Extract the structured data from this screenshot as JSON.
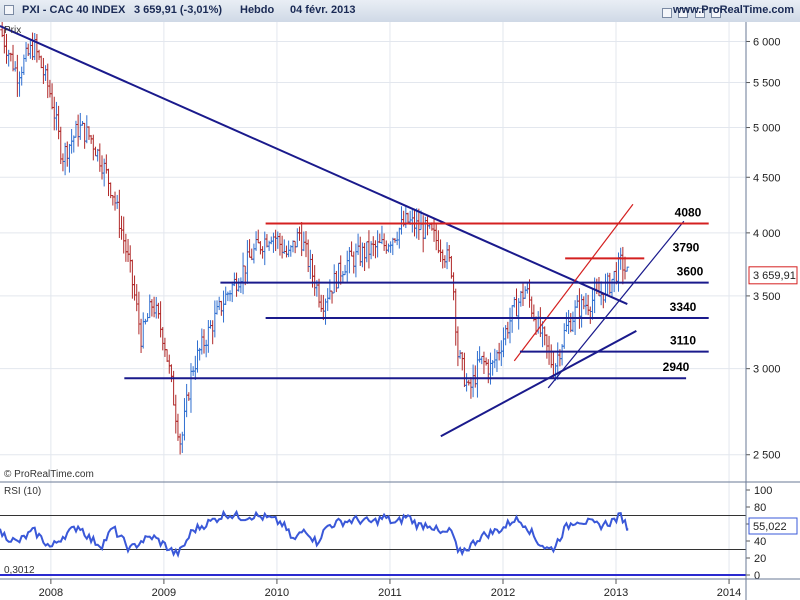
{
  "header": {
    "symbol": "PXI - CAC 40 INDEX",
    "quote": "3 659,91 (-3,01%)",
    "period": "Hebdo",
    "date": "04 févr. 2013",
    "site": "www.ProRealTime.com"
  },
  "main_panel": {
    "label": "Prix",
    "copyright": "© ProRealTime.com",
    "current_price_label": "3 659,91",
    "levels": [
      {
        "label": "4080",
        "value": 4080
      },
      {
        "label": "3790",
        "value": 3790
      },
      {
        "label": "3600",
        "value": 3600
      },
      {
        "label": "3340",
        "value": 3340
      },
      {
        "label": "3110",
        "value": 3110
      },
      {
        "label": "2940",
        "value": 2940
      }
    ]
  },
  "rsi_panel": {
    "label": "RSI (10)",
    "current_label": "55,022",
    "bottom_left_label": "0,3012"
  },
  "colors": {
    "up": "#2f6fd0",
    "down": "#b02828",
    "trend": "#1a1a8c",
    "resistance": "#d42020",
    "rsi_line": "#3a58d8"
  },
  "chart_data": {
    "type": "ohlc",
    "title": "PXI - CAC 40 INDEX",
    "period": "Hebdo",
    "y_scale": "log",
    "ylim": [
      2400,
      6200
    ],
    "y_ticks": [
      2500,
      3000,
      3500,
      4000,
      4500,
      5000,
      5500,
      6000
    ],
    "y_tick_labels": [
      "2 500",
      "3 000",
      "3 500",
      "4 000",
      "4 500",
      "5 000",
      "5 500",
      "6 000"
    ],
    "x_ticks": [
      "2008",
      "2009",
      "2010",
      "2011",
      "2012",
      "2013",
      "2014"
    ],
    "x_range": [
      2007.55,
      2014.15
    ],
    "last_close": 3659.91,
    "price_path": [
      [
        2007.55,
        6150
      ],
      [
        2007.7,
        5600
      ],
      [
        2007.85,
        5950
      ],
      [
        2008.0,
        5350
      ],
      [
        2008.1,
        4700
      ],
      [
        2008.25,
        5000
      ],
      [
        2008.35,
        4900
      ],
      [
        2008.45,
        4650
      ],
      [
        2008.55,
        4350
      ],
      [
        2008.7,
        3700
      ],
      [
        2008.8,
        3200
      ],
      [
        2008.9,
        3450
      ],
      [
        2009.0,
        3200
      ],
      [
        2009.1,
        2750
      ],
      [
        2009.15,
        2550
      ],
      [
        2009.25,
        3000
      ],
      [
        2009.4,
        3250
      ],
      [
        2009.55,
        3500
      ],
      [
        2009.7,
        3700
      ],
      [
        2009.8,
        3850
      ],
      [
        2009.95,
        4000
      ],
      [
        2010.0,
        3950
      ],
      [
        2010.1,
        3800
      ],
      [
        2010.2,
        4000
      ],
      [
        2010.3,
        3700
      ],
      [
        2010.4,
        3450
      ],
      [
        2010.5,
        3600
      ],
      [
        2010.6,
        3750
      ],
      [
        2010.8,
        3850
      ],
      [
        2010.95,
        3900
      ],
      [
        2011.05,
        4000
      ],
      [
        2011.15,
        4100
      ],
      [
        2011.25,
        4050
      ],
      [
        2011.35,
        4000
      ],
      [
        2011.45,
        3900
      ],
      [
        2011.55,
        3700
      ],
      [
        2011.6,
        3100
      ],
      [
        2011.7,
        2850
      ],
      [
        2011.8,
        3050
      ],
      [
        2011.9,
        3000
      ],
      [
        2012.0,
        3200
      ],
      [
        2012.1,
        3400
      ],
      [
        2012.2,
        3550
      ],
      [
        2012.3,
        3300
      ],
      [
        2012.4,
        3100
      ],
      [
        2012.45,
        3000
      ],
      [
        2012.55,
        3250
      ],
      [
        2012.65,
        3400
      ],
      [
        2012.75,
        3450
      ],
      [
        2012.85,
        3500
      ],
      [
        2012.95,
        3600
      ],
      [
        2013.05,
        3760
      ],
      [
        2013.1,
        3659.91
      ]
    ],
    "trend_lines": [
      {
        "name": "downtrend",
        "points": [
          [
            2007.55,
            6200
          ],
          [
            2013.1,
            3440
          ]
        ]
      },
      {
        "name": "support",
        "points": [
          [
            2011.45,
            2600
          ],
          [
            2013.18,
            3250
          ]
        ]
      },
      {
        "name": "channel-lower",
        "points": [
          [
            2012.4,
            2880
          ],
          [
            2013.6,
            4100
          ]
        ]
      },
      {
        "name": "channel-upper",
        "points": [
          [
            2012.1,
            3050
          ],
          [
            2013.15,
            4250
          ]
        ]
      }
    ],
    "horizontal_levels": [
      {
        "value": 4080,
        "from": 2009.9,
        "to": 2013.82,
        "color": "resistance"
      },
      {
        "value": 3790,
        "from": 2012.55,
        "to": 2013.25,
        "color": "resistance"
      },
      {
        "value": 3600,
        "from": 2009.5,
        "to": 2013.82,
        "color": "trend"
      },
      {
        "value": 3340,
        "from": 2009.9,
        "to": 2013.82,
        "color": "trend"
      },
      {
        "value": 3110,
        "from": 2012.15,
        "to": 2013.82,
        "color": "trend"
      },
      {
        "value": 2940,
        "from": 2008.65,
        "to": 2013.62,
        "color": "trend"
      }
    ],
    "rsi": {
      "name": "RSI (10)",
      "ylim": [
        0,
        100
      ],
      "y_ticks": [
        0,
        20,
        40,
        60,
        80,
        100
      ],
      "bands": [
        30,
        70
      ],
      "last": 55.022,
      "path": [
        [
          2007.55,
          50
        ],
        [
          2007.7,
          38
        ],
        [
          2007.85,
          52
        ],
        [
          2008.0,
          32
        ],
        [
          2008.1,
          45
        ],
        [
          2008.25,
          58
        ],
        [
          2008.35,
          42
        ],
        [
          2008.45,
          35
        ],
        [
          2008.55,
          55
        ],
        [
          2008.7,
          30
        ],
        [
          2008.8,
          40
        ],
        [
          2008.9,
          45
        ],
        [
          2009.0,
          36
        ],
        [
          2009.1,
          25
        ],
        [
          2009.15,
          28
        ],
        [
          2009.25,
          52
        ],
        [
          2009.4,
          62
        ],
        [
          2009.55,
          72
        ],
        [
          2009.7,
          68
        ],
        [
          2009.8,
          70
        ],
        [
          2009.95,
          66
        ],
        [
          2010.05,
          60
        ],
        [
          2010.15,
          40
        ],
        [
          2010.25,
          55
        ],
        [
          2010.35,
          38
        ],
        [
          2010.45,
          58
        ],
        [
          2010.55,
          62
        ],
        [
          2010.7,
          65
        ],
        [
          2010.85,
          62
        ],
        [
          2010.95,
          68
        ],
        [
          2011.05,
          60
        ],
        [
          2011.15,
          70
        ],
        [
          2011.25,
          58
        ],
        [
          2011.35,
          60
        ],
        [
          2011.45,
          48
        ],
        [
          2011.55,
          52
        ],
        [
          2011.6,
          25
        ],
        [
          2011.7,
          33
        ],
        [
          2011.8,
          45
        ],
        [
          2011.9,
          50
        ],
        [
          2012.0,
          55
        ],
        [
          2012.1,
          66
        ],
        [
          2012.2,
          60
        ],
        [
          2012.3,
          40
        ],
        [
          2012.4,
          30
        ],
        [
          2012.45,
          32
        ],
        [
          2012.55,
          55
        ],
        [
          2012.65,
          65
        ],
        [
          2012.75,
          62
        ],
        [
          2012.85,
          58
        ],
        [
          2012.95,
          62
        ],
        [
          2013.05,
          70
        ],
        [
          2013.1,
          55.022
        ]
      ]
    }
  }
}
